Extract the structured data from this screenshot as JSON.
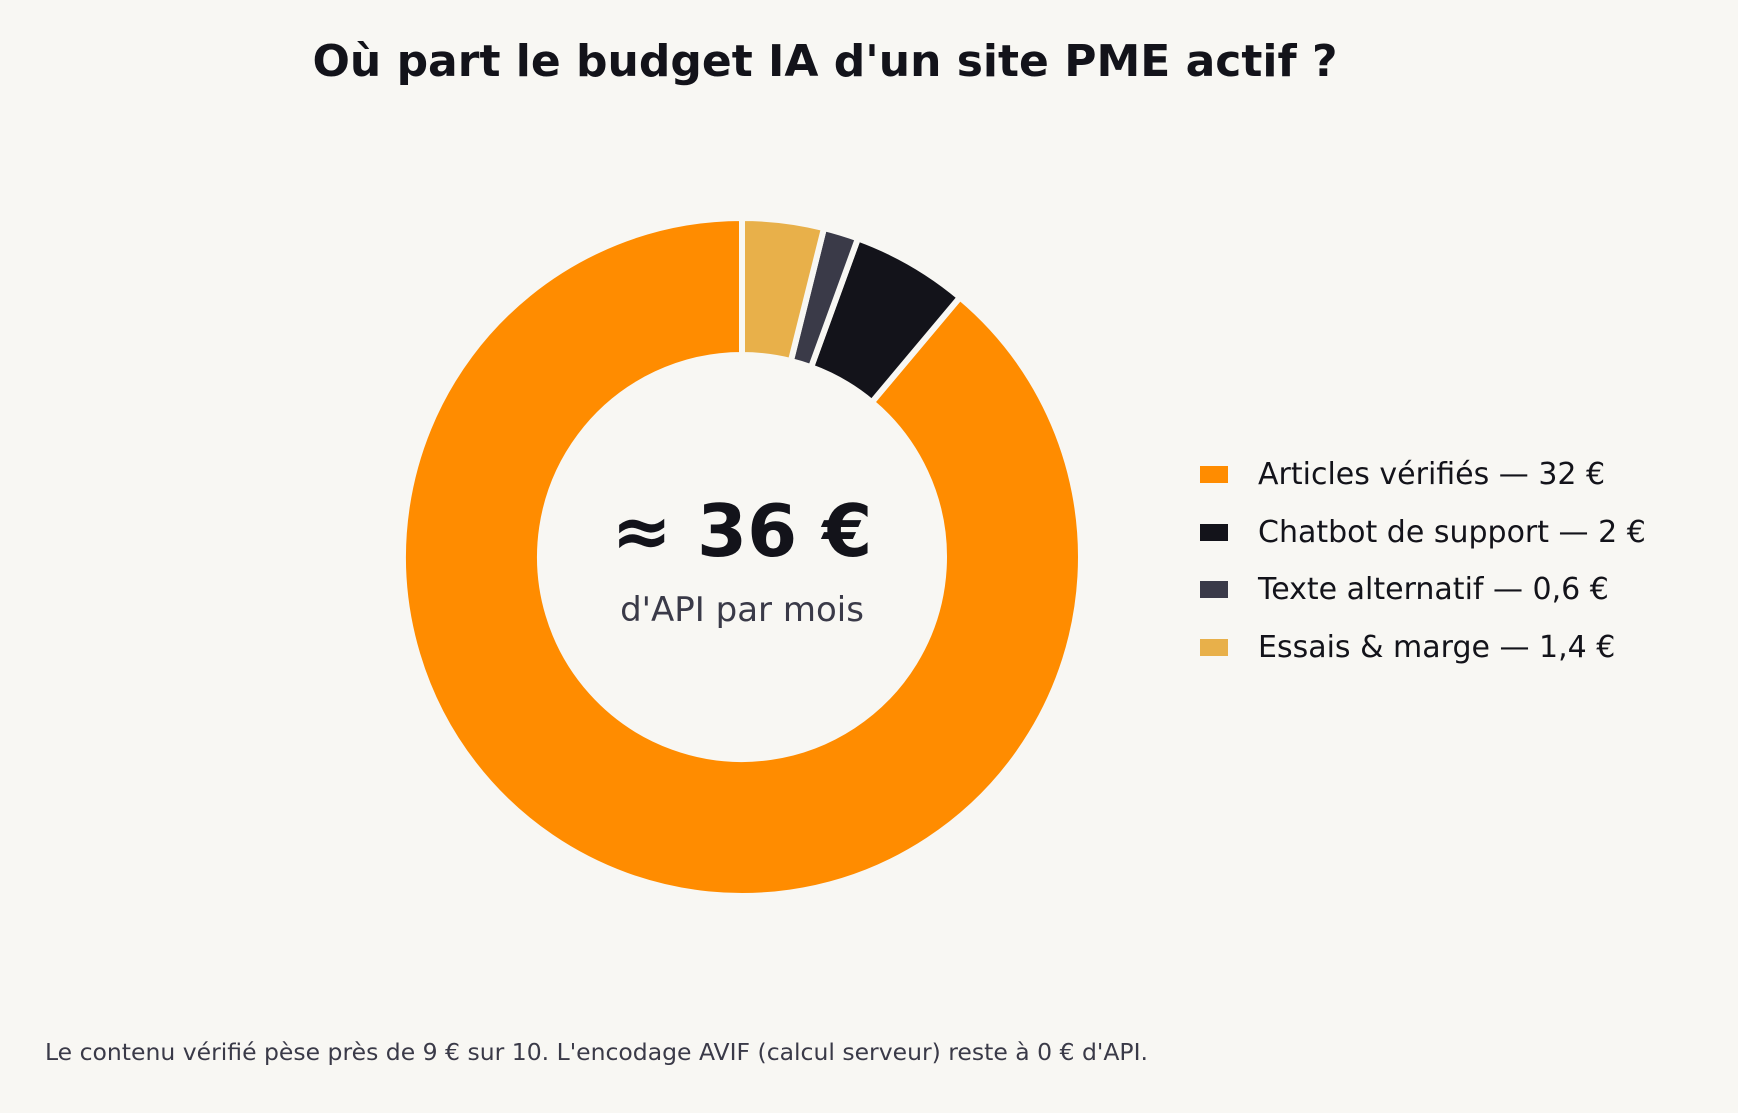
{
  "chart_data": {
    "type": "pie",
    "variant": "donut",
    "title": "Où part le budget IA d'un site PME actif ?",
    "unit": "€",
    "categories": [
      "Articles vérifiés",
      "Chatbot de support",
      "Texte alternatif",
      "Essais & marge"
    ],
    "values": [
      32,
      2,
      0.6,
      1.4
    ],
    "colors": [
      "#ff8c00",
      "#13131a",
      "#3a3a48",
      "#e8b04a"
    ],
    "legend_labels": [
      "Articles vérifiés  —  32 €",
      "Chatbot de support  —  2 €",
      "Texte alternatif  —  0,6 €",
      "Essais & marge  —  1,4 €"
    ],
    "legend_position": "right",
    "center_value": "≈ 36 €",
    "center_label": "d'API par mois",
    "footnote": "Le contenu vérifié pèse près de 9 € sur 10. L'encodage AVIF (calcul serveur) reste à 0 € d'API."
  }
}
